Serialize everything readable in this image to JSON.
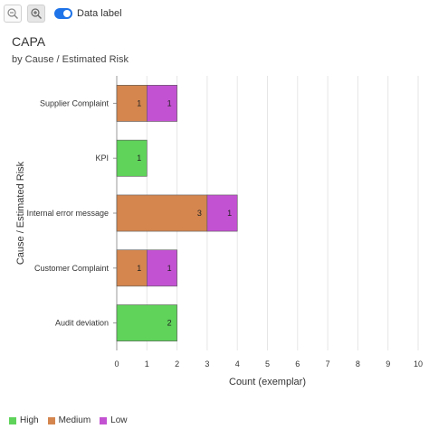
{
  "toolbar": {
    "zoom_out_icon": "zoom-out-icon",
    "zoom_in_icon": "zoom-in-icon",
    "data_label_toggle": "Data label",
    "data_label_on": true
  },
  "chart_data": {
    "type": "bar",
    "orientation": "horizontal",
    "stacked": true,
    "title": "CAPA",
    "subtitle": "by Cause / Estimated Risk",
    "xlabel": "Count (exemplar)",
    "ylabel": "Cause / Estimated Risk",
    "xlim": [
      0,
      10
    ],
    "xticks": [
      0,
      1,
      2,
      3,
      4,
      5,
      6,
      7,
      8,
      9,
      10
    ],
    "grid": true,
    "legend_position": "bottom-left",
    "categories": [
      "Supplier Complaint",
      "KPI",
      "Internal error message",
      "Customer Complaint",
      "Audit deviation"
    ],
    "series": [
      {
        "name": "High",
        "color": "#5fd35a",
        "values": [
          0,
          1,
          0,
          0,
          2
        ]
      },
      {
        "name": "Medium",
        "color": "#d4864e",
        "values": [
          1,
          0,
          3,
          1,
          0
        ]
      },
      {
        "name": "Low",
        "color": "#c352d2",
        "values": [
          1,
          0,
          1,
          1,
          0
        ]
      }
    ]
  }
}
